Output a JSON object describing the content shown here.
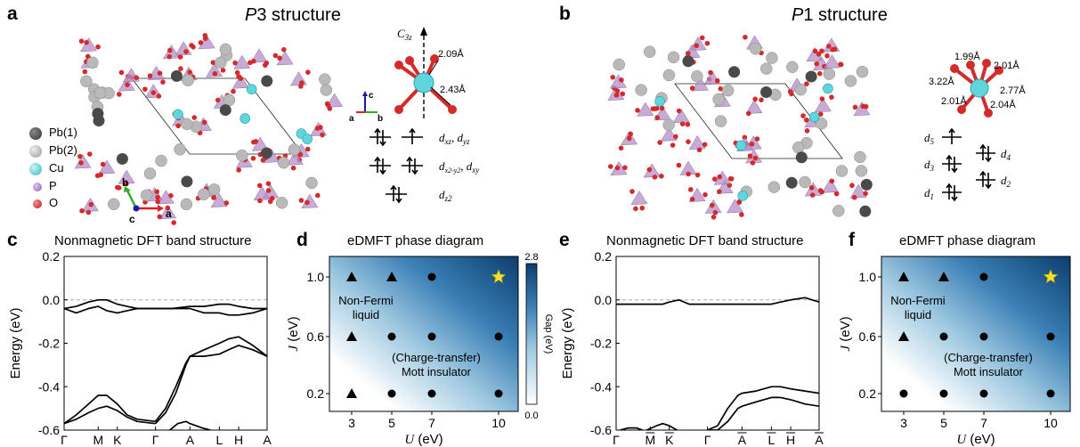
{
  "panels": {
    "a": {
      "letter": "a",
      "title_italic": "P",
      "title_rest": "3 structure"
    },
    "b": {
      "letter": "b",
      "title_italic": "P",
      "title_rest": "1 structure"
    },
    "c": {
      "letter": "c",
      "title": "Nonmagnetic DFT band structure"
    },
    "d": {
      "letter": "d",
      "title": "eDMFT phase diagram"
    },
    "e": {
      "letter": "e",
      "title": "Nonmagnetic DFT band structure"
    },
    "f": {
      "letter": "f",
      "title": "eDMFT phase diagram"
    }
  },
  "legend": [
    {
      "label": "Pb(1)",
      "color": "#4a4a4a"
    },
    {
      "label": "Pb(2)",
      "color": "#b4b4b4"
    },
    {
      "label": "Cu",
      "color": "#5fd6dc"
    },
    {
      "label": "P",
      "color": "#a77bbd"
    },
    {
      "label": "O",
      "color": "#d42a2a"
    }
  ],
  "axes_a": {
    "b": "b",
    "c": "c",
    "a": "a"
  },
  "axes_a_small": {
    "c": "c",
    "a": "a",
    "b": "b"
  },
  "p3_annot": {
    "c3z_main": "C",
    "c3z_sub": "3z",
    "d1": "2.09Å",
    "d2": "2.43Å"
  },
  "p3_levels": [
    {
      "label": "d",
      "sub": "xz",
      "label2": "d",
      "sub2": "yz"
    },
    {
      "label": "d",
      "sub": "x2-y2",
      "label2": "d",
      "sub2": "xy"
    },
    {
      "label": "d",
      "sub": "z2",
      "label2": "",
      "sub2": ""
    }
  ],
  "p1_annot": {
    "d1": "1.99Å",
    "d2": "2.01Å",
    "d3": "3.22Å",
    "d4": "2.77Å",
    "d5": "2.01Å",
    "d6": "2.04Å"
  },
  "p1_levels": [
    "d",
    "d",
    "d",
    "d",
    "d"
  ],
  "p1_level_subs": [
    "5",
    "3",
    "1",
    "4",
    "2"
  ],
  "chart_data": [
    {
      "type": "line",
      "title": "Nonmagnetic DFT band structure",
      "ylabel": "Energy (eV)",
      "ylim": [
        -0.6,
        0.2
      ],
      "yticks": [
        "0.2",
        "0.0",
        "-0.2",
        "-0.4",
        "-0.6"
      ],
      "kpoints": [
        "Γ",
        "M",
        "K",
        "Γ",
        "A",
        "L",
        "H",
        "A"
      ],
      "kpos": [
        0,
        0.168,
        0.262,
        0.45,
        0.62,
        0.765,
        0.86,
        1.0
      ],
      "series": [
        {
          "x": [
            0,
            0.06,
            0.12,
            0.168,
            0.21,
            0.262,
            0.31,
            0.36,
            0.45,
            0.53,
            0.62,
            0.69,
            0.765,
            0.81,
            0.86,
            0.93,
            1.0
          ],
          "y": [
            -0.04,
            -0.03,
            -0.01,
            0.0,
            0.0,
            -0.02,
            -0.03,
            -0.04,
            -0.04,
            -0.04,
            -0.03,
            -0.03,
            -0.02,
            -0.02,
            -0.03,
            -0.04,
            -0.04
          ]
        },
        {
          "x": [
            0,
            0.06,
            0.12,
            0.168,
            0.21,
            0.262,
            0.31,
            0.36,
            0.45,
            0.53,
            0.62,
            0.69,
            0.765,
            0.81,
            0.86,
            0.93,
            1.0
          ],
          "y": [
            -0.04,
            -0.06,
            -0.04,
            -0.03,
            -0.05,
            -0.06,
            -0.05,
            -0.04,
            -0.04,
            -0.04,
            -0.04,
            -0.06,
            -0.06,
            -0.07,
            -0.07,
            -0.06,
            -0.04
          ]
        },
        {
          "x": [
            0.45,
            0.5,
            0.55,
            0.6,
            0.62,
            0.69,
            0.765,
            0.81,
            0.86,
            0.93,
            1.0
          ],
          "y": [
            -0.56,
            -0.5,
            -0.4,
            -0.29,
            -0.26,
            -0.23,
            -0.2,
            -0.18,
            -0.17,
            -0.21,
            -0.26
          ]
        },
        {
          "x": [
            0.45,
            0.5,
            0.55,
            0.6,
            0.62,
            0.69,
            0.765,
            0.81,
            0.86,
            0.93,
            1.0
          ],
          "y": [
            -0.57,
            -0.52,
            -0.43,
            -0.3,
            -0.26,
            -0.26,
            -0.25,
            -0.23,
            -0.21,
            -0.23,
            -0.26
          ]
        },
        {
          "x": [
            0,
            0.06,
            0.12,
            0.168,
            0.21,
            0.262,
            0.31,
            0.36,
            0.45
          ],
          "y": [
            -0.57,
            -0.53,
            -0.48,
            -0.44,
            -0.44,
            -0.48,
            -0.53,
            -0.55,
            -0.56
          ]
        },
        {
          "x": [
            0,
            0.06,
            0.12,
            0.168,
            0.21,
            0.262,
            0.31,
            0.36,
            0.45
          ],
          "y": [
            -0.57,
            -0.55,
            -0.52,
            -0.5,
            -0.49,
            -0.51,
            -0.54,
            -0.56,
            -0.57
          ]
        },
        {
          "x": [
            0.52,
            0.56,
            0.6,
            0.62,
            0.68,
            0.72
          ],
          "y": [
            -0.6,
            -0.57,
            -0.56,
            -0.57,
            -0.59,
            -0.6
          ]
        }
      ]
    },
    {
      "type": "scatter",
      "title": "eDMFT phase diagram",
      "xlabel": "U (eV)",
      "xlabel_main": "U",
      "xlabel_unit": " (eV)",
      "ylabel": "J (eV)",
      "ylabel_main": "J",
      "ylabel_unit": " (eV)",
      "xticks": [
        "3",
        "5",
        "7",
        "10"
      ],
      "yticks": [
        "1.0",
        "0.6",
        "0.2"
      ],
      "colorbar": {
        "label": "Gap (eV)",
        "min": "0.0",
        "max": "2.8"
      },
      "annotations": [
        "Non-Fermi",
        "liquid",
        "(Charge-transfer)",
        "Mott insulator"
      ],
      "points": [
        {
          "U": 3,
          "J": 1.0,
          "m": "triangle"
        },
        {
          "U": 5,
          "J": 1.0,
          "m": "triangle"
        },
        {
          "U": 7,
          "J": 1.0,
          "m": "circle"
        },
        {
          "U": 10,
          "J": 1.0,
          "m": "star"
        },
        {
          "U": 3,
          "J": 0.6,
          "m": "triangle"
        },
        {
          "U": 5,
          "J": 0.6,
          "m": "circle"
        },
        {
          "U": 7,
          "J": 0.6,
          "m": "circle"
        },
        {
          "U": 10,
          "J": 0.6,
          "m": "circle"
        },
        {
          "U": 3,
          "J": 0.2,
          "m": "triangle"
        },
        {
          "U": 5,
          "J": 0.2,
          "m": "circle"
        },
        {
          "U": 7,
          "J": 0.2,
          "m": "circle"
        },
        {
          "U": 10,
          "J": 0.2,
          "m": "circle"
        }
      ]
    },
    {
      "type": "line",
      "title": "Nonmagnetic DFT band structure",
      "ylabel": "Energy (eV)",
      "ylim": [
        -0.6,
        0.2
      ],
      "yticks": [
        "0.2",
        "0.0",
        "-0.2",
        "-0.4",
        "-0.6"
      ],
      "kpoints": [
        "Γ",
        "M",
        "K",
        "Γ",
        "A",
        "L",
        "H",
        "A"
      ],
      "kbar": [
        false,
        true,
        true,
        false,
        true,
        true,
        true,
        true
      ],
      "kpos": [
        0,
        0.168,
        0.262,
        0.45,
        0.62,
        0.765,
        0.86,
        1.0
      ],
      "series": [
        {
          "x": [
            0,
            0.1,
            0.168,
            0.23,
            0.262,
            0.31,
            0.36,
            0.45,
            0.53,
            0.62,
            0.69,
            0.765,
            0.81,
            0.86,
            0.93,
            1.0
          ],
          "y": [
            -0.02,
            -0.02,
            -0.02,
            -0.02,
            -0.01,
            0.0,
            -0.02,
            -0.02,
            -0.02,
            -0.02,
            -0.02,
            -0.02,
            -0.01,
            0.0,
            0.01,
            -0.01
          ]
        },
        {
          "x": [
            0.45,
            0.5,
            0.55,
            0.6,
            0.62,
            0.69,
            0.765,
            0.81,
            0.86,
            0.93,
            1.0
          ],
          "y": [
            -0.6,
            -0.58,
            -0.5,
            -0.44,
            -0.43,
            -0.42,
            -0.4,
            -0.4,
            -0.41,
            -0.42,
            -0.43
          ]
        },
        {
          "x": [
            0.45,
            0.5,
            0.55,
            0.6,
            0.62,
            0.69,
            0.765,
            0.81,
            0.86,
            0.93,
            1.0
          ],
          "y": [
            -0.6,
            -0.6,
            -0.56,
            -0.5,
            -0.49,
            -0.47,
            -0.45,
            -0.45,
            -0.46,
            -0.48,
            -0.49
          ]
        },
        {
          "x": [
            0.15,
            0.2,
            0.23,
            0.262,
            0.3
          ],
          "y": [
            -0.6,
            -0.58,
            -0.57,
            -0.58,
            -0.6
          ]
        },
        {
          "x": [
            0.02,
            0.06,
            0.1,
            0.13
          ],
          "y": [
            -0.6,
            -0.59,
            -0.59,
            -0.6
          ]
        }
      ]
    },
    {
      "type": "scatter",
      "title": "eDMFT phase diagram",
      "xlabel": "U (eV)",
      "xlabel_main": "U",
      "xlabel_unit": " (eV)",
      "ylabel": "J (eV)",
      "ylabel_main": "J",
      "ylabel_unit": " (eV)",
      "xticks": [
        "3",
        "5",
        "7",
        "10"
      ],
      "yticks": [
        "1.0",
        "0.6",
        "0.2"
      ],
      "annotations": [
        "Non-Fermi",
        "liquid",
        "(Charge-transfer)",
        "Mott insulator"
      ],
      "points": [
        {
          "U": 3,
          "J": 1.0,
          "m": "triangle"
        },
        {
          "U": 5,
          "J": 1.0,
          "m": "triangle"
        },
        {
          "U": 7,
          "J": 1.0,
          "m": "circle"
        },
        {
          "U": 10,
          "J": 1.0,
          "m": "star"
        },
        {
          "U": 3,
          "J": 0.6,
          "m": "triangle"
        },
        {
          "U": 5,
          "J": 0.6,
          "m": "circle"
        },
        {
          "U": 7,
          "J": 0.6,
          "m": "circle"
        },
        {
          "U": 10,
          "J": 0.6,
          "m": "circle"
        },
        {
          "U": 3,
          "J": 0.2,
          "m": "circle"
        },
        {
          "U": 5,
          "J": 0.2,
          "m": "circle"
        },
        {
          "U": 7,
          "J": 0.2,
          "m": "circle"
        },
        {
          "U": 10,
          "J": 0.2,
          "m": "circle"
        }
      ]
    }
  ]
}
